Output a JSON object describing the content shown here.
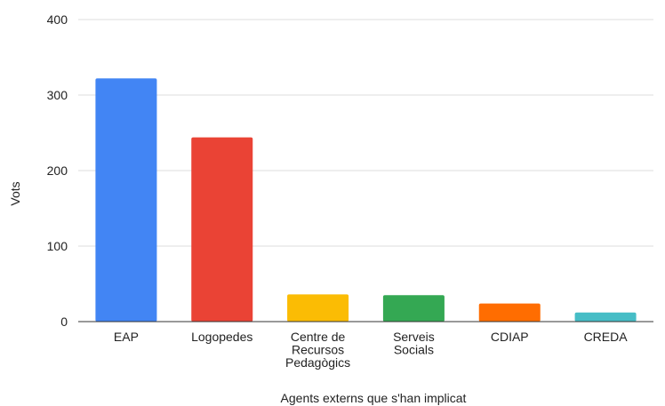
{
  "chart_data": {
    "type": "bar",
    "title": "",
    "xlabel": "Agents externs que s'han implicat",
    "ylabel": "Vots",
    "ylim": [
      0,
      400
    ],
    "yticks": [
      0,
      100,
      200,
      300,
      400
    ],
    "grid": true,
    "legend": "none",
    "categories": [
      "EAP",
      "Logopedes",
      "Centre de Recursos Pedagògics",
      "Serveis Socials",
      "CDIAP",
      "CREDA"
    ],
    "category_lines": [
      [
        "EAP"
      ],
      [
        "Logopedes"
      ],
      [
        "Centre de",
        "Recursos",
        "Pedagògics"
      ],
      [
        "Serveis",
        "Socials"
      ],
      [
        "CDIAP"
      ],
      [
        "CREDA"
      ]
    ],
    "values": [
      322,
      244,
      36,
      35,
      24,
      12
    ],
    "colors": [
      "#4285f4",
      "#ea4335",
      "#fbbc04",
      "#34a853",
      "#ff6d01",
      "#46bdc6"
    ],
    "gridline_color": "#dddddd",
    "baseline_color": "#333333"
  }
}
